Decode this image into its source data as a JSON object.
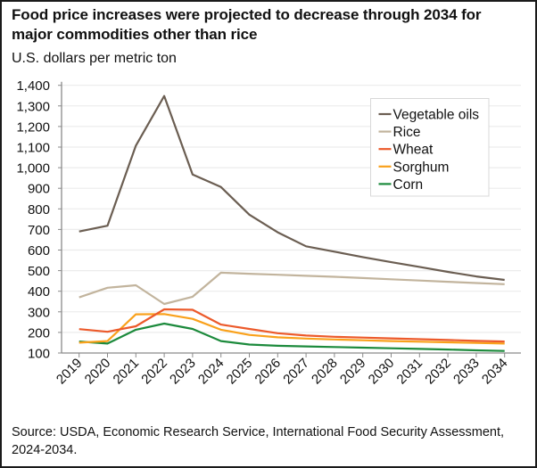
{
  "chart_data": {
    "type": "line",
    "title": "Food price increases were projected to decrease through 2034 for major commodities other than rice",
    "xlabel": "",
    "ylabel": "U.S. dollars per metric ton",
    "ylim": [
      100,
      1400
    ],
    "yticks": [
      100,
      200,
      300,
      400,
      500,
      600,
      700,
      800,
      900,
      1000,
      1100,
      1200,
      1300,
      1400
    ],
    "ytick_labels": [
      "100",
      "200",
      "300",
      "400",
      "500",
      "600",
      "700",
      "800",
      "900",
      "1,000",
      "1,100",
      "1,200",
      "1,300",
      "1,400"
    ],
    "x": [
      "2019",
      "2020",
      "2021",
      "2022",
      "2023",
      "2024",
      "2025",
      "2026",
      "2027",
      "2028",
      "2029",
      "2030",
      "2031",
      "2032",
      "2033",
      "2034"
    ],
    "grid": "horizontal",
    "legend_position": "top-right",
    "series": [
      {
        "name": "Vegetable oils",
        "color": "#6b5e52",
        "values": [
          690,
          718,
          1107,
          1348,
          967,
          906,
          772,
          686,
          618,
          592,
          566,
          541,
          518,
          494,
          472,
          455
        ]
      },
      {
        "name": "Rice",
        "color": "#c2b49d",
        "values": [
          370,
          417,
          429,
          338,
          373,
          490,
          485,
          480,
          475,
          470,
          464,
          458,
          452,
          446,
          440,
          434
        ]
      },
      {
        "name": "Wheat",
        "color": "#ec5a2b",
        "values": [
          216,
          203,
          230,
          312,
          310,
          238,
          217,
          196,
          185,
          179,
          175,
          171,
          167,
          163,
          159,
          156
        ]
      },
      {
        "name": "Sorghum",
        "color": "#f9a11b",
        "values": [
          150,
          158,
          288,
          289,
          266,
          213,
          188,
          176,
          170,
          166,
          162,
          158,
          155,
          152,
          149,
          146
        ]
      },
      {
        "name": "Corn",
        "color": "#1c8a3c",
        "values": [
          156,
          146,
          213,
          243,
          217,
          158,
          141,
          135,
          132,
          129,
          126,
          123,
          120,
          117,
          113,
          110
        ]
      }
    ],
    "source": "Source: USDA, Economic Research Service, International Food Security Assessment, 2024-2034."
  },
  "colors": {
    "axis": "#8a8a8a",
    "grid": "#ececec",
    "legend_border": "#d8d8d8"
  }
}
